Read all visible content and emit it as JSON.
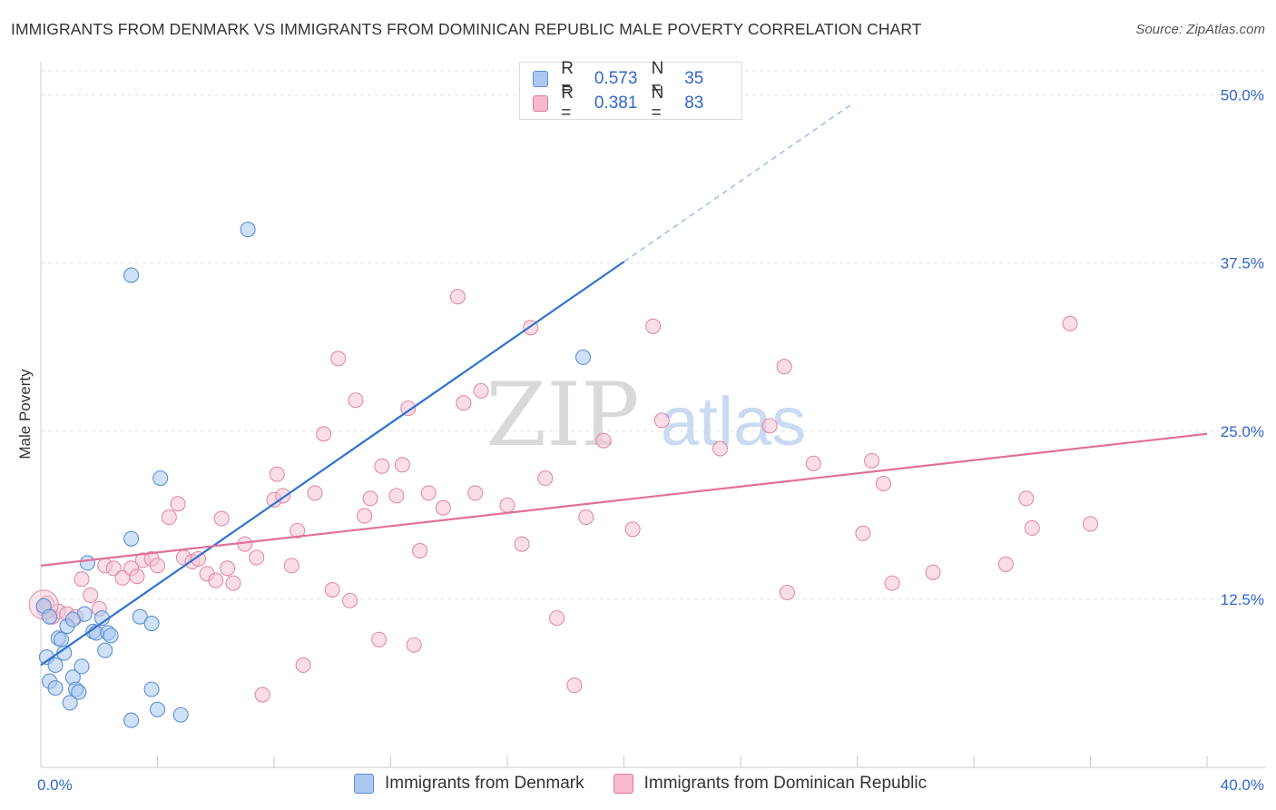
{
  "title": "IMMIGRANTS FROM DENMARK VS IMMIGRANTS FROM DOMINICAN REPUBLIC MALE POVERTY CORRELATION CHART",
  "source": "Source: ZipAtlas.com",
  "watermark": {
    "zip": "ZIP",
    "atlas": "atlas"
  },
  "colors": {
    "blue": "#5b8fd6",
    "blue_fill": "#aac8f0",
    "pink": "#e07aa0",
    "pink_fill": "#f5b8cc",
    "blue_line": "#2f72d0",
    "pink_line": "#e0709a"
  },
  "legend": {
    "rows": [
      {
        "r_label": "R =",
        "r_value": "0.573",
        "n_label": "N =",
        "n_value": "35"
      },
      {
        "r_label": "R =",
        "r_value": "0.381",
        "n_label": "N =",
        "n_value": "83"
      }
    ]
  },
  "bottom_legend": [
    {
      "label": "Immigrants from Denmark"
    },
    {
      "label": "Immigrants from Dominican Republic"
    }
  ],
  "chart_data": {
    "type": "scatter",
    "title": "IMMIGRANTS FROM DENMARK VS IMMIGRANTS FROM DOMINICAN REPUBLIC MALE POVERTY CORRELATION CHART",
    "xlabel": "",
    "ylabel": "Male Poverty",
    "xlim": [
      0,
      40
    ],
    "ylim": [
      0,
      52
    ],
    "x_tick_labels": [
      {
        "value": 0,
        "label": "0.0%"
      },
      {
        "value": 40,
        "label": "40.0%"
      }
    ],
    "y_tick_labels": [
      {
        "value": 12.5,
        "label": "12.5%"
      },
      {
        "value": 25,
        "label": "25.0%"
      },
      {
        "value": 37.5,
        "label": "37.5%"
      },
      {
        "value": 50,
        "label": "50.0%"
      }
    ],
    "series": [
      {
        "name": "Immigrants from Denmark",
        "R": 0.573,
        "N": 35,
        "trend": {
          "x0": 0,
          "y0": 7.6,
          "x1": 20,
          "y1": 37.6,
          "dash_to_x": 27.8,
          "dash_to_y": 49.3
        },
        "points": [
          [
            0.2,
            8.2
          ],
          [
            0.3,
            6.4
          ],
          [
            0.5,
            7.6
          ],
          [
            0.5,
            5.9
          ],
          [
            0.6,
            9.6
          ],
          [
            0.7,
            9.5
          ],
          [
            0.8,
            8.5
          ],
          [
            0.9,
            10.5
          ],
          [
            1.0,
            4.8
          ],
          [
            1.1,
            6.7
          ],
          [
            1.2,
            5.8
          ],
          [
            1.3,
            5.6
          ],
          [
            1.4,
            7.5
          ],
          [
            1.5,
            11.4
          ],
          [
            1.6,
            15.2
          ],
          [
            1.8,
            10.1
          ],
          [
            1.9,
            10.0
          ],
          [
            2.1,
            11.1
          ],
          [
            2.2,
            8.7
          ],
          [
            2.3,
            10.0
          ],
          [
            2.4,
            9.8
          ],
          [
            3.1,
            3.5
          ],
          [
            3.1,
            17.0
          ],
          [
            3.4,
            11.2
          ],
          [
            3.8,
            5.8
          ],
          [
            3.8,
            10.7
          ],
          [
            4.0,
            4.3
          ],
          [
            4.1,
            21.5
          ],
          [
            4.8,
            3.9
          ],
          [
            7.1,
            40.0
          ],
          [
            3.1,
            36.6
          ],
          [
            18.6,
            30.5
          ],
          [
            0.1,
            12.0
          ],
          [
            0.3,
            11.2
          ],
          [
            1.1,
            11.0
          ]
        ]
      },
      {
        "name": "Immigrants from Dominican Republic",
        "R": 0.381,
        "N": 83,
        "trend": {
          "x0": 0,
          "y0": 15.0,
          "x1": 40,
          "y1": 24.8
        },
        "points": [
          [
            0.1,
            11.8
          ],
          [
            0.4,
            11.2
          ],
          [
            0.6,
            11.6
          ],
          [
            0.9,
            11.4
          ],
          [
            1.4,
            14.0
          ],
          [
            1.7,
            12.8
          ],
          [
            2.0,
            11.8
          ],
          [
            2.2,
            15.0
          ],
          [
            2.5,
            14.8
          ],
          [
            2.8,
            14.1
          ],
          [
            3.1,
            14.8
          ],
          [
            3.3,
            14.2
          ],
          [
            3.5,
            15.4
          ],
          [
            3.8,
            15.5
          ],
          [
            4.0,
            15.0
          ],
          [
            4.4,
            18.6
          ],
          [
            4.7,
            19.6
          ],
          [
            4.9,
            15.6
          ],
          [
            5.2,
            15.3
          ],
          [
            5.4,
            15.5
          ],
          [
            5.7,
            14.4
          ],
          [
            6.0,
            13.9
          ],
          [
            6.2,
            18.5
          ],
          [
            6.4,
            14.8
          ],
          [
            6.6,
            13.7
          ],
          [
            7.0,
            16.6
          ],
          [
            7.4,
            15.6
          ],
          [
            7.6,
            5.4
          ],
          [
            8.0,
            19.9
          ],
          [
            8.1,
            21.8
          ],
          [
            8.3,
            20.2
          ],
          [
            8.6,
            15.0
          ],
          [
            8.8,
            17.6
          ],
          [
            9.0,
            7.6
          ],
          [
            9.4,
            20.4
          ],
          [
            9.7,
            24.8
          ],
          [
            10.0,
            13.2
          ],
          [
            10.2,
            30.4
          ],
          [
            10.6,
            12.4
          ],
          [
            10.8,
            27.3
          ],
          [
            11.1,
            18.7
          ],
          [
            11.3,
            20.0
          ],
          [
            11.6,
            9.5
          ],
          [
            11.7,
            22.4
          ],
          [
            12.2,
            20.2
          ],
          [
            12.4,
            22.5
          ],
          [
            12.6,
            26.7
          ],
          [
            12.8,
            9.1
          ],
          [
            13.0,
            16.1
          ],
          [
            13.3,
            20.4
          ],
          [
            13.8,
            19.3
          ],
          [
            14.3,
            35.0
          ],
          [
            14.5,
            27.1
          ],
          [
            14.9,
            20.4
          ],
          [
            15.1,
            28.0
          ],
          [
            16.0,
            19.5
          ],
          [
            16.5,
            16.6
          ],
          [
            16.8,
            32.7
          ],
          [
            17.3,
            21.5
          ],
          [
            17.7,
            11.1
          ],
          [
            18.3,
            6.1
          ],
          [
            18.7,
            18.6
          ],
          [
            19.3,
            24.3
          ],
          [
            20.3,
            17.7
          ],
          [
            21.0,
            32.8
          ],
          [
            21.3,
            25.8
          ],
          [
            23.3,
            23.7
          ],
          [
            25.0,
            25.4
          ],
          [
            25.5,
            29.8
          ],
          [
            25.6,
            13.0
          ],
          [
            26.5,
            22.6
          ],
          [
            28.2,
            17.4
          ],
          [
            28.5,
            22.8
          ],
          [
            28.9,
            21.1
          ],
          [
            29.2,
            13.7
          ],
          [
            30.6,
            14.5
          ],
          [
            33.1,
            15.1
          ],
          [
            33.8,
            20.0
          ],
          [
            34.0,
            17.8
          ],
          [
            35.3,
            33.0
          ],
          [
            36.0,
            18.1
          ],
          [
            0.2,
            12.2
          ],
          [
            1.2,
            11.2
          ]
        ]
      }
    ]
  }
}
